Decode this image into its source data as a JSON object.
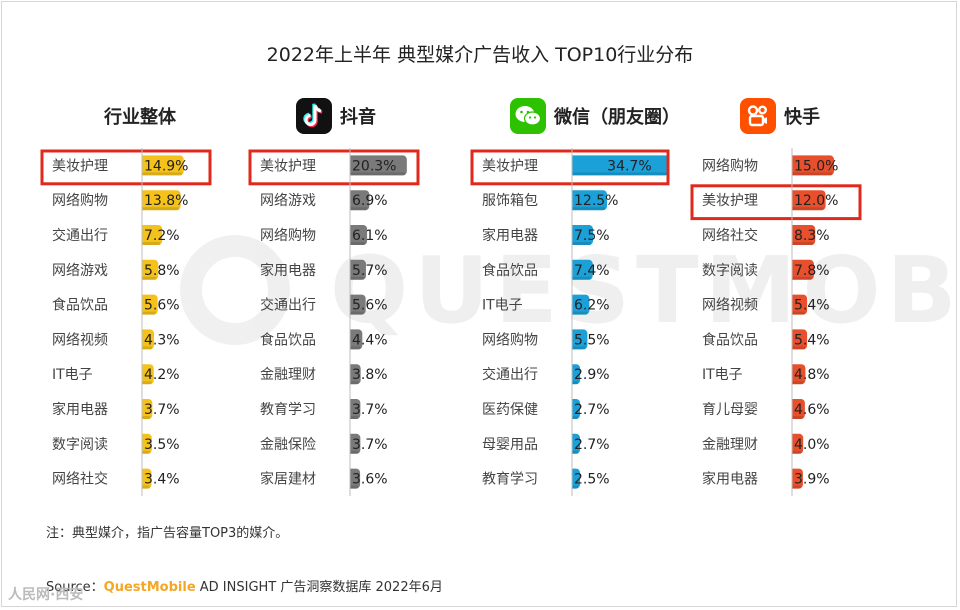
{
  "title": "2022年上半年 典型媒介广告收入 TOP10行业分布",
  "note": "注：典型媒介，指广告容量TOP3的媒介。",
  "source": {
    "prefix": "Source：",
    "brand": "QuestMobile",
    "text": " AD INSIGHT 广告洞察数据库 2022年6月"
  },
  "watermark": {
    "text": "QUESTMOBILE"
  },
  "corner_mark": "人民网·西安",
  "chart_data": [
    {
      "type": "bar",
      "name": "行业整体",
      "color": "#f5c21b",
      "highlight": [
        0
      ],
      "categories": [
        "美妆护理",
        "网络购物",
        "交通出行",
        "网络游戏",
        "食品饮品",
        "网络视频",
        "IT电子",
        "家用电器",
        "数字阅读",
        "网络社交"
      ],
      "labels": [
        "14.9%",
        "13.8%",
        "7.2%",
        "5.8%",
        "5.6%",
        "4.3%",
        "4.2%",
        "3.7%",
        "3.5%",
        "3.4%"
      ],
      "values": [
        14.9,
        13.8,
        7.2,
        5.8,
        5.6,
        4.3,
        4.2,
        3.7,
        3.5,
        3.4
      ]
    },
    {
      "type": "bar",
      "name": "抖音",
      "color": "#7a7a7a",
      "highlight": [
        0
      ],
      "categories": [
        "美妆护理",
        "网络游戏",
        "网络购物",
        "家用电器",
        "交通出行",
        "食品饮品",
        "金融理财",
        "教育学习",
        "金融保险",
        "家居建材"
      ],
      "labels": [
        "20.3%",
        "6.9%",
        "6.1%",
        "5.7%",
        "5.6%",
        "4.4%",
        "3.8%",
        "3.7%",
        "3.7%",
        "3.6%"
      ],
      "values": [
        20.3,
        6.9,
        6.1,
        5.7,
        5.6,
        4.4,
        3.8,
        3.7,
        3.7,
        3.6
      ]
    },
    {
      "type": "bar",
      "name": "微信（朋友圈）",
      "color": "#1ba1d8",
      "highlight": [
        0
      ],
      "categories": [
        "美妆护理",
        "服饰箱包",
        "家用电器",
        "食品饮品",
        "IT电子",
        "网络购物",
        "交通出行",
        "医药保健",
        "母婴用品",
        "教育学习"
      ],
      "labels": [
        "34.7%",
        "12.5%",
        "7.5%",
        "7.4%",
        "6.2%",
        "5.5%",
        "2.9%",
        "2.7%",
        "2.7%",
        "2.5%"
      ],
      "values": [
        34.7,
        12.5,
        7.5,
        7.4,
        6.2,
        5.5,
        2.9,
        2.7,
        2.7,
        2.5
      ]
    },
    {
      "type": "bar",
      "name": "快手",
      "color": "#e8502d",
      "highlight": [
        1
      ],
      "categories": [
        "网络购物",
        "美妆护理",
        "网络社交",
        "数字阅读",
        "网络视频",
        "食品饮品",
        "IT电子",
        "育儿母婴",
        "金融理财",
        "家用电器"
      ],
      "labels": [
        "15.0%",
        "12.0%",
        "8.3%",
        "7.8%",
        "5.4%",
        "5.4%",
        "4.8%",
        "4.6%",
        "4.0%",
        "3.9%"
      ],
      "values": [
        15.0,
        12.0,
        8.3,
        7.8,
        5.4,
        5.4,
        4.8,
        4.6,
        4.0,
        3.9
      ]
    }
  ]
}
